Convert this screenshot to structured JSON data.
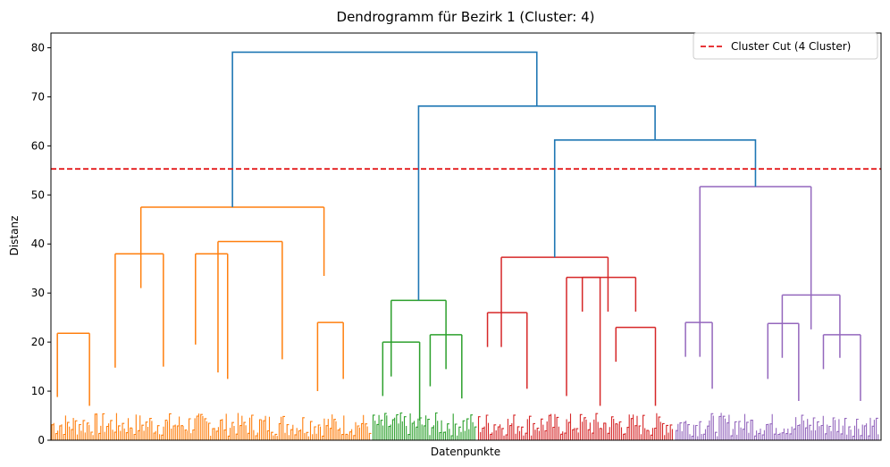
{
  "chart_data": {
    "type": "dendrogram",
    "title": "Dendrogramm für Bezirk 1 (Cluster: 4)",
    "xlabel": "Datenpunkte",
    "ylabel": "Distanz",
    "ylim": [
      0,
      83
    ],
    "yticks": [
      0,
      10,
      20,
      30,
      40,
      50,
      60,
      70,
      80
    ],
    "grid": false,
    "legend": {
      "placement": "top-right",
      "label": "Cluster Cut (4 Cluster)"
    },
    "cut_height": 55.3,
    "colors": {
      "above_cut": "#1f77b4",
      "cut_line": "#e41a1c",
      "cluster_1": "#ff7f0e",
      "cluster_2": "#2ca02c",
      "cluster_3": "#d62728",
      "cluster_4": "#9467bd"
    },
    "clusters": [
      {
        "color": "#ff7f0e",
        "share": 0.387,
        "merges": [
          {
            "l": [
              0.2,
              0.25
            ],
            "r": [
              0.35,
              0.3
            ],
            "h": [
              21.8,
              22.0,
              38.0
            ]
          },
          {
            "l": [
              0.02,
              0.06
            ],
            "r": [
              0.12,
              0.1
            ],
            "h": [
              15.8,
              14.0,
              21.8
            ]
          },
          {
            "l": [
              0.52,
              0.58
            ],
            "r": [
              0.72,
              0.6
            ],
            "h": [
              20.8,
              23.5,
              40.5
            ]
          },
          {
            "l": [
              0.45,
              0.5
            ],
            "r": [
              0.55,
              0.2
            ],
            "h": [
              26.5,
              19.5,
              38.0
            ]
          },
          {
            "l": [
              0.83,
              0.3
            ],
            "r": [
              0.91,
              0.2
            ],
            "h": [
              17.0,
              19.5,
              24.0
            ]
          },
          {
            "l": [
              0.28,
              0.65
            ],
            "r": [
              0.85,
              0.15
            ],
            "h": [
              38.0,
              40.5,
              47.5
            ]
          }
        ]
      },
      {
        "color": "#2ca02c",
        "share": 0.127,
        "merges": [
          {
            "l": [
              0.1,
              0.3
            ],
            "r": [
              0.45,
              0.2
            ],
            "h": [
              16.0,
              9.0,
              20.0
            ]
          },
          {
            "l": [
              0.55,
              0.25
            ],
            "r": [
              0.85,
              0.2
            ],
            "h": [
              18.0,
              15.5,
              21.5
            ]
          },
          {
            "l": [
              0.18,
              0.35
            ],
            "r": [
              0.7,
              0.3
            ],
            "h": [
              20.0,
              21.5,
              28.5
            ]
          }
        ]
      },
      {
        "color": "#d62728",
        "share": 0.238,
        "merges": [
          {
            "l": [
              0.05,
              0.12
            ],
            "r": [
              0.25,
              0.12
            ],
            "h": [
              26.0,
              17.5,
              26.0
            ]
          },
          {
            "l": [
              0.45,
              0.1
            ],
            "r": [
              0.62,
              0.1
            ],
            "h": [
              16.0,
              14.0,
              33.2
            ]
          },
          {
            "l": [
              0.7,
              0.12
            ],
            "r": [
              0.9,
              0.1
            ],
            "h": [
              23.0,
              14.0,
              23.0
            ]
          },
          {
            "l": [
              0.53,
              0.3
            ],
            "r": [
              0.8,
              0.3
            ],
            "h": [
              33.2,
              33.2,
              33.2
            ]
          },
          {
            "l": [
              0.12,
              0.3
            ],
            "r": [
              0.66,
              0.4
            ],
            "h": [
              26.0,
              33.2,
              37.3
            ]
          }
        ]
      },
      {
        "color": "#9467bd",
        "share": 0.248,
        "merges": [
          {
            "l": [
              0.05,
              0.1
            ],
            "r": [
              0.18,
              0.1
            ],
            "h": [
              24.0,
              17.5,
              24.0
            ]
          },
          {
            "l": [
              0.45,
              0.1
            ],
            "r": [
              0.6,
              0.1
            ],
            "h": [
              19.5,
              15.0,
              23.8
            ]
          },
          {
            "l": [
              0.72,
              0.12
            ],
            "r": [
              0.9,
              0.1
            ],
            "h": [
              21.5,
              15.0,
              21.5
            ]
          },
          {
            "l": [
              0.52,
              0.3
            ],
            "r": [
              0.8,
              0.3
            ],
            "h": [
              23.8,
              23.8,
              29.6
            ]
          },
          {
            "l": [
              0.12,
              0.4
            ],
            "r": [
              0.66,
              0.4
            ],
            "h": [
              24.0,
              29.6,
              51.7
            ]
          }
        ]
      }
    ],
    "top_links": [
      {
        "name": "merge-cluster3-cluster4",
        "h_left": 37.3,
        "h_right": 51.7,
        "h": 61.2
      },
      {
        "name": "merge-cluster2-rest",
        "h_left": 28.5,
        "h_right": 61.2,
        "h": 68.1
      },
      {
        "name": "merge-root",
        "h_left": 47.5,
        "h_right": 68.1,
        "h": 79.1
      }
    ]
  }
}
